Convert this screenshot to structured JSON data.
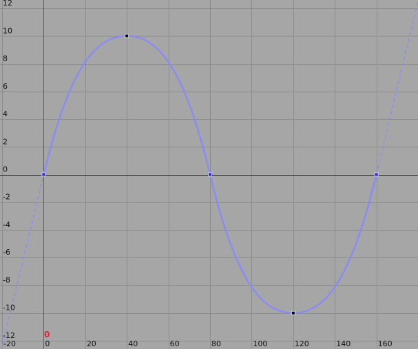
{
  "editor": {
    "current_frame": "0",
    "x_axis_labels": [
      "-20",
      "0",
      "20",
      "40",
      "60",
      "80",
      "100",
      "120",
      "140",
      "160"
    ],
    "y_axis_labels": [
      "12",
      "10",
      "8",
      "6",
      "4",
      "2",
      "0",
      "-2",
      "-4",
      "-6",
      "-8",
      "-10",
      "-12"
    ],
    "colors": {
      "background": "#a6a6a6",
      "grid": "#8c8c8c",
      "axis": "#1a1a1a",
      "playhead": "#d7263d",
      "curve": "#8a8cf2",
      "keyframe": "#000000",
      "handle": "#2b2bd6"
    }
  },
  "chart_data": {
    "type": "line",
    "title": "",
    "xlabel": "",
    "ylabel": "",
    "xlim": [
      -21,
      180
    ],
    "ylim": [
      -12.6,
      12.6
    ],
    "grid": true,
    "series": [
      {
        "keyframes": [
          {
            "x": 0,
            "y": 0
          },
          {
            "x": 40,
            "y": 10
          },
          {
            "x": 80,
            "y": 0
          },
          {
            "x": 120,
            "y": -10
          },
          {
            "x": 160,
            "y": 0
          }
        ],
        "extrapolation": "linear-dashed"
      }
    ]
  }
}
